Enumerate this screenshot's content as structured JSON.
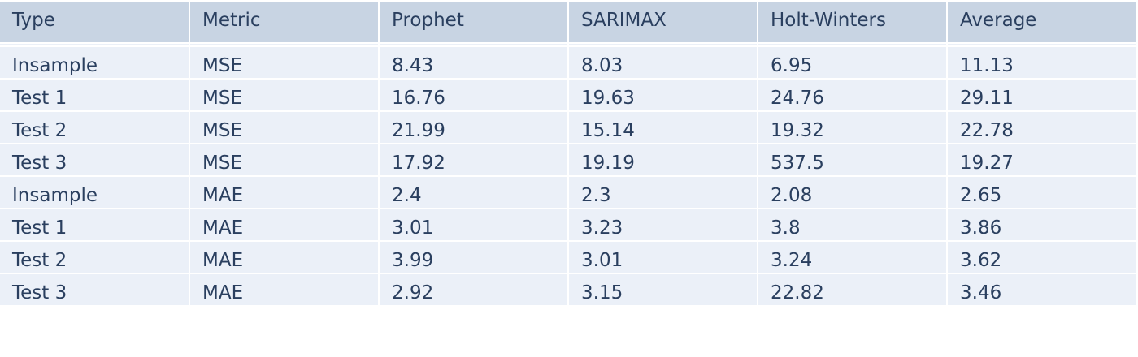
{
  "chart_data": {
    "type": "table",
    "columns": [
      "Type",
      "Metric",
      "Prophet",
      "SARIMAX",
      "Holt-Winters",
      "Average"
    ],
    "rows": [
      [
        "Insample",
        "MSE",
        "8.43",
        "8.03",
        "6.95",
        "11.13"
      ],
      [
        "Test 1",
        "MSE",
        "16.76",
        "19.63",
        "24.76",
        "29.11"
      ],
      [
        "Test 2",
        "MSE",
        "21.99",
        "15.14",
        "19.32",
        "22.78"
      ],
      [
        "Test 3",
        "MSE",
        "17.92",
        "19.19",
        "537.5",
        "19.27"
      ],
      [
        "Insample",
        "MAE",
        "2.4",
        "2.3",
        "2.08",
        "2.65"
      ],
      [
        "Test 1",
        "MAE",
        "3.01",
        "3.23",
        "3.8",
        "3.86"
      ],
      [
        "Test 2",
        "MAE",
        "3.99",
        "3.01",
        "3.24",
        "3.62"
      ],
      [
        "Test 3",
        "MAE",
        "2.92",
        "3.15",
        "22.82",
        "3.46"
      ]
    ],
    "colors": {
      "header_fill": "#c8d4e3",
      "cell_fill": "#ebf0f8",
      "text": "#2a3f5f",
      "line": "#ffffff"
    }
  }
}
